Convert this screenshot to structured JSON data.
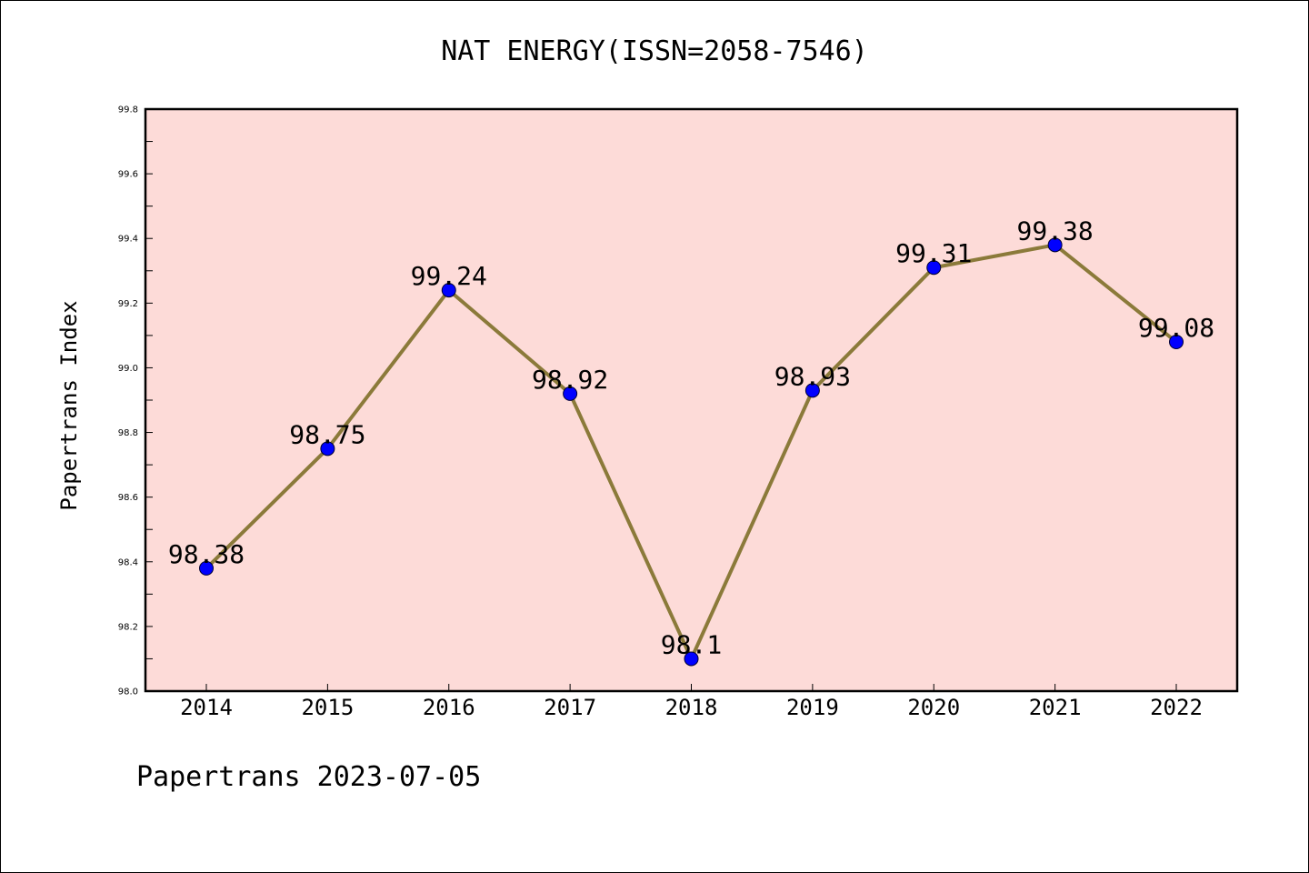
{
  "chart_data": {
    "type": "line",
    "title": "NAT ENERGY(ISSN=2058-7546)",
    "ylabel": "Papertrans Index",
    "xlabel": "",
    "categories": [
      "2014",
      "2015",
      "2016",
      "2017",
      "2018",
      "2019",
      "2020",
      "2021",
      "2022"
    ],
    "values": [
      98.38,
      98.75,
      99.24,
      98.92,
      98.1,
      98.93,
      99.31,
      99.38,
      99.08
    ],
    "data_labels": [
      "98.38",
      "98.75",
      "99.24",
      "98.92",
      "98.1",
      "98.93",
      "99.31",
      "99.38",
      "99.08"
    ],
    "ylim": [
      98.0,
      99.8
    ],
    "yticks": [
      "98.0",
      "98.2",
      "98.4",
      "98.6",
      "98.8",
      "99.0",
      "99.2",
      "99.4",
      "99.6",
      "99.8"
    ],
    "grid": false,
    "colors": {
      "plot_background": "#fddbd8",
      "line": "#8b7a3a",
      "marker": "#0000ff"
    }
  },
  "footer": "Papertrans 2023-07-05"
}
